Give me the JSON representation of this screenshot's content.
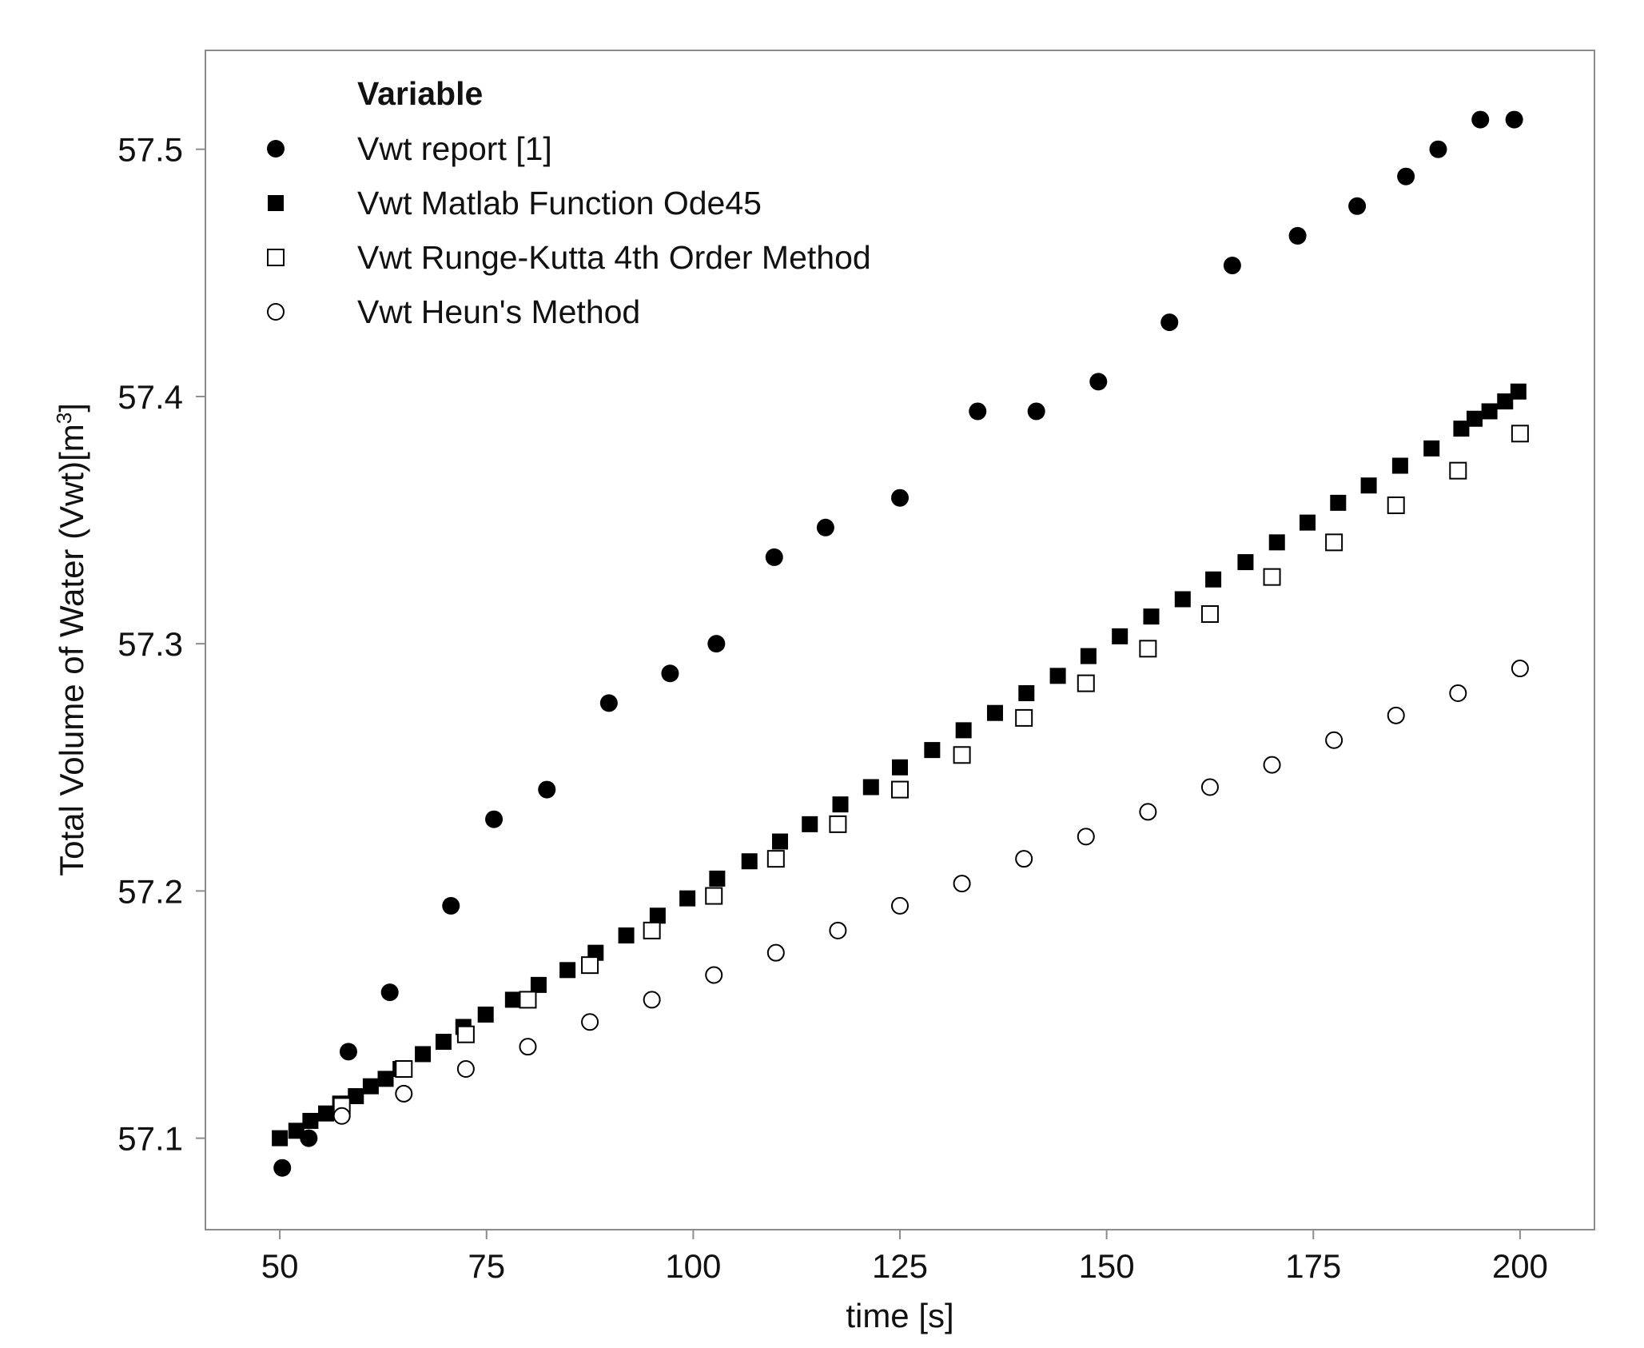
{
  "chart_data": {
    "type": "scatter",
    "xlabel": "time [s]",
    "ylabel": "Total Volume of Water (Vwt)[m",
    "ylabel_sup": "3",
    "ylabel_end": "]",
    "xlim": [
      41,
      209
    ],
    "ylim": [
      57.063,
      57.54
    ],
    "xticks": [
      50,
      75,
      100,
      125,
      150,
      175,
      200
    ],
    "xtick_labels": [
      "50",
      "75",
      "100",
      "125",
      "150",
      "175",
      "200"
    ],
    "yticks": [
      57.1,
      57.2,
      57.3,
      57.4,
      57.5
    ],
    "ytick_labels": [
      "57.1",
      "57.2",
      "57.3",
      "57.4",
      "57.5"
    ],
    "grid": false,
    "legend": {
      "title": "Variable",
      "position": "top-left"
    },
    "series": [
      {
        "name": "Vwt report [1]",
        "marker": "filled-circle",
        "color": "#000000",
        "x": [
          50.3,
          53.5,
          58.3,
          63.3,
          70.7,
          75.9,
          82.3,
          89.8,
          97.2,
          102.8,
          109.8,
          116.0,
          125.0,
          134.4,
          141.5,
          149.0,
          157.6,
          165.2,
          173.1,
          180.3,
          186.2,
          190.1,
          195.2,
          199.3
        ],
        "y": [
          57.088,
          57.1,
          57.135,
          57.159,
          57.194,
          57.229,
          57.241,
          57.276,
          57.288,
          57.3,
          57.335,
          57.347,
          57.359,
          57.394,
          57.394,
          57.406,
          57.43,
          57.453,
          57.465,
          57.477,
          57.489,
          57.5,
          57.512,
          57.512
        ]
      },
      {
        "name": "Vwt Matlab Function Ode45",
        "marker": "filled-square",
        "color": "#000000",
        "x": [
          50.0,
          52.0,
          53.7,
          55.6,
          57.3,
          59.2,
          61.0,
          62.8,
          64.6,
          67.3,
          69.8,
          72.2,
          74.9,
          78.2,
          81.3,
          84.8,
          88.2,
          91.9,
          95.7,
          99.3,
          102.9,
          106.8,
          110.5,
          114.1,
          117.8,
          121.5,
          125.0,
          128.9,
          132.7,
          136.5,
          140.3,
          144.1,
          147.8,
          151.6,
          155.4,
          159.2,
          162.9,
          166.8,
          170.6,
          174.3,
          178.0,
          181.7,
          185.5,
          189.3,
          192.9,
          194.5,
          196.3,
          198.2,
          199.8
        ],
        "y": [
          57.1,
          57.103,
          57.107,
          57.11,
          57.114,
          57.117,
          57.121,
          57.124,
          57.128,
          57.134,
          57.139,
          57.145,
          57.15,
          57.156,
          57.162,
          57.168,
          57.175,
          57.182,
          57.19,
          57.197,
          57.205,
          57.212,
          57.22,
          57.227,
          57.235,
          57.242,
          57.25,
          57.257,
          57.265,
          57.272,
          57.28,
          57.287,
          57.295,
          57.303,
          57.311,
          57.318,
          57.326,
          57.333,
          57.341,
          57.349,
          57.357,
          57.364,
          57.372,
          57.379,
          57.387,
          57.391,
          57.394,
          57.398,
          57.402
        ]
      },
      {
        "name": "Vwt Runge-Kutta 4th Order Method",
        "marker": "open-square",
        "color": "#000000",
        "x": [
          57.5,
          65.0,
          72.5,
          80.0,
          87.5,
          95.0,
          102.5,
          110.0,
          117.5,
          125.0,
          132.5,
          140.0,
          147.5,
          155.0,
          162.5,
          170.0,
          177.5,
          185.0,
          192.5,
          200.0
        ],
        "y": [
          57.113,
          57.128,
          57.142,
          57.156,
          57.17,
          57.184,
          57.198,
          57.213,
          57.227,
          57.241,
          57.255,
          57.27,
          57.284,
          57.298,
          57.312,
          57.327,
          57.341,
          57.356,
          57.37,
          57.385
        ]
      },
      {
        "name": "Vwt Heun's Method",
        "marker": "open-circle",
        "color": "#000000",
        "x": [
          57.5,
          65.0,
          72.5,
          80.0,
          87.5,
          95.0,
          102.5,
          110.0,
          117.5,
          125.0,
          132.5,
          140.0,
          147.5,
          155.0,
          162.5,
          170.0,
          177.5,
          185.0,
          192.5,
          200.0
        ],
        "y": [
          57.109,
          57.118,
          57.128,
          57.137,
          57.147,
          57.156,
          57.166,
          57.175,
          57.184,
          57.194,
          57.203,
          57.213,
          57.222,
          57.232,
          57.242,
          57.251,
          57.261,
          57.271,
          57.28,
          57.29
        ]
      }
    ]
  }
}
